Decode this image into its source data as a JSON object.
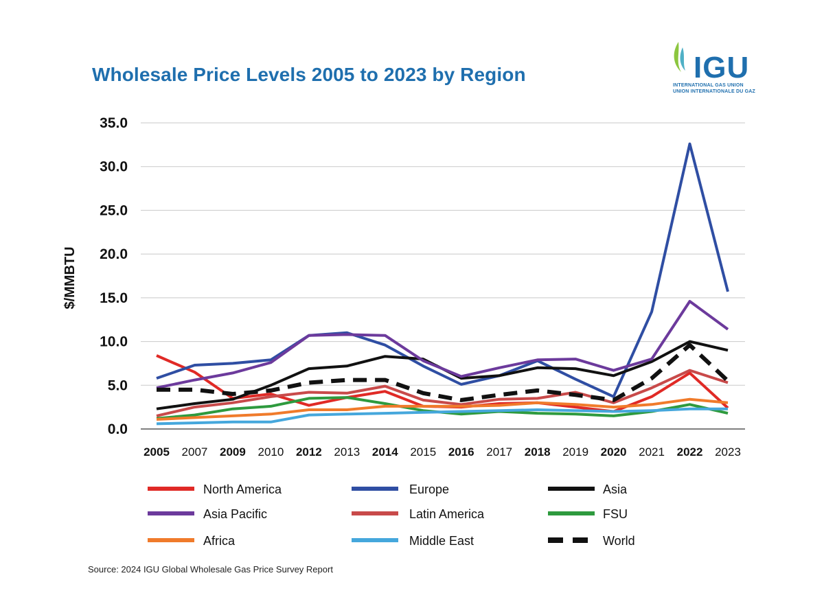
{
  "header": {
    "title": "Wholesale Price Levels 2005 to 2023 by Region",
    "logo_text": "IGU",
    "logo_sub1": "INTERNATIONAL GAS UNION",
    "logo_sub2": "UNION INTERNATIONALE DU GAZ"
  },
  "footer": {
    "source": "Source: 2024 IGU Global Wholesale Gas Price Survey Report"
  },
  "colors": {
    "title": "#1f6fae",
    "grid": "#c8c8c8"
  },
  "chart_data": {
    "type": "line",
    "title": "Wholesale Price Levels 2005 to 2023 by Region",
    "xlabel": "",
    "ylabel": "$/MMBTU",
    "ylim": [
      0,
      35
    ],
    "yticks": [
      "0.0",
      "5.0",
      "10.0",
      "15.0",
      "20.0",
      "25.0",
      "30.0",
      "35.0"
    ],
    "categories": [
      "2005",
      "2007",
      "2009",
      "2010",
      "2012",
      "2013",
      "2014",
      "2015",
      "2016",
      "2017",
      "2018",
      "2019",
      "2020",
      "2021",
      "2022",
      "2023"
    ],
    "bold_categories": [
      "2005",
      "2009",
      "2012",
      "2014",
      "2016",
      "2018",
      "2020",
      "2022"
    ],
    "grid": true,
    "legend_position": "bottom",
    "series": [
      {
        "name": "North America",
        "color": "#e02a26",
        "dashed": false,
        "values": [
          8.4,
          6.5,
          3.5,
          4.0,
          2.7,
          3.6,
          4.3,
          2.6,
          2.5,
          2.9,
          3.0,
          2.5,
          2.0,
          3.7,
          6.4,
          2.4
        ]
      },
      {
        "name": "Europe",
        "color": "#2f4ea3",
        "dashed": false,
        "values": [
          5.8,
          7.3,
          7.5,
          7.9,
          10.7,
          11.0,
          9.6,
          7.2,
          5.1,
          6.1,
          7.8,
          5.7,
          3.7,
          13.4,
          32.6,
          15.7
        ]
      },
      {
        "name": "Asia",
        "color": "#111111",
        "dashed": false,
        "values": [
          2.3,
          2.9,
          3.4,
          5.0,
          6.9,
          7.2,
          8.3,
          8.0,
          5.8,
          6.1,
          7.0,
          6.9,
          6.1,
          7.7,
          10.0,
          9.0
        ]
      },
      {
        "name": "Asia Pacific",
        "color": "#6c3a9c",
        "dashed": false,
        "values": [
          4.7,
          5.6,
          6.4,
          7.6,
          10.7,
          10.8,
          10.7,
          7.8,
          6.0,
          7.0,
          7.9,
          8.0,
          6.7,
          8.0,
          14.6,
          11.4
        ]
      },
      {
        "name": "Latin America",
        "color": "#c84a4a",
        "dashed": false,
        "values": [
          1.5,
          2.5,
          3.0,
          3.7,
          4.2,
          4.1,
          4.9,
          3.3,
          2.8,
          3.4,
          3.5,
          4.2,
          3.0,
          4.7,
          6.7,
          5.3
        ]
      },
      {
        "name": "FSU",
        "color": "#2e9a3e",
        "dashed": false,
        "values": [
          1.2,
          1.6,
          2.3,
          2.6,
          3.5,
          3.6,
          2.9,
          2.1,
          1.7,
          2.0,
          1.8,
          1.7,
          1.5,
          2.0,
          2.8,
          1.8
        ]
      },
      {
        "name": "Africa",
        "color": "#f07b2b",
        "dashed": false,
        "values": [
          1.1,
          1.3,
          1.5,
          1.7,
          2.2,
          2.2,
          2.6,
          2.6,
          2.6,
          2.7,
          3.0,
          2.8,
          2.5,
          2.8,
          3.4,
          3.0
        ]
      },
      {
        "name": "Middle East",
        "color": "#45a7dc",
        "dashed": false,
        "values": [
          0.6,
          0.7,
          0.8,
          0.8,
          1.6,
          1.7,
          1.8,
          1.9,
          2.0,
          2.1,
          2.2,
          2.1,
          2.0,
          2.1,
          2.3,
          2.3
        ]
      },
      {
        "name": "World",
        "color": "#111111",
        "dashed": true,
        "values": [
          4.5,
          4.5,
          4.0,
          4.4,
          5.3,
          5.6,
          5.6,
          4.1,
          3.3,
          3.9,
          4.4,
          3.9,
          3.3,
          5.8,
          9.6,
          5.5
        ]
      }
    ]
  }
}
